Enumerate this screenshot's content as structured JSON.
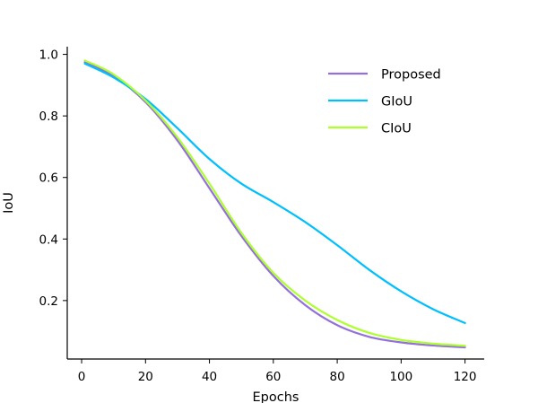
{
  "chart_data": {
    "type": "line",
    "xlabel": "Epochs",
    "ylabel": "IoU",
    "xlim": [
      -4.5,
      126
    ],
    "ylim": [
      0.01,
      1.025
    ],
    "xticks": [
      0,
      20,
      40,
      60,
      80,
      100,
      120
    ],
    "yticks": [
      0.2,
      0.4,
      0.6,
      0.8,
      1.0
    ],
    "ytick_labels": [
      "0.2",
      "0.4",
      "0.6",
      "0.8",
      "1.0"
    ],
    "grid": false,
    "legend_position": "top-right",
    "x": [
      1,
      10,
      20,
      30,
      40,
      50,
      60,
      70,
      80,
      90,
      100,
      110,
      120
    ],
    "series": [
      {
        "name": "Proposed",
        "color": "#9370db",
        "values": [
          0.975,
          0.93,
          0.845,
          0.72,
          0.565,
          0.41,
          0.28,
          0.185,
          0.12,
          0.082,
          0.064,
          0.054,
          0.048
        ]
      },
      {
        "name": "GIoU",
        "color": "#00bfff",
        "values": [
          0.97,
          0.925,
          0.855,
          0.76,
          0.66,
          0.58,
          0.52,
          0.455,
          0.38,
          0.3,
          0.23,
          0.172,
          0.127
        ]
      },
      {
        "name": "CIoU",
        "color": "#adff2f",
        "values": [
          0.98,
          0.935,
          0.85,
          0.73,
          0.58,
          0.42,
          0.29,
          0.2,
          0.137,
          0.095,
          0.072,
          0.06,
          0.053
        ]
      }
    ]
  }
}
